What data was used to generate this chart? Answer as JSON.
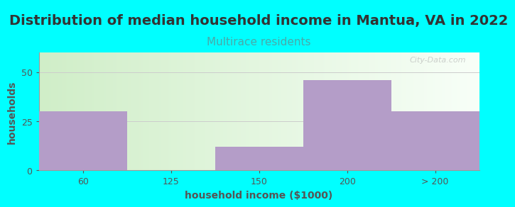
{
  "title": "Distribution of median household income in Mantua, VA in 2022",
  "subtitle": "Multirace residents",
  "xlabel": "household income ($1000)",
  "ylabel": "households",
  "background_color": "#00FFFF",
  "bar_colors": [
    "#b49dc8",
    "#c8e8b8",
    "#b49dc8",
    "#b49dc8",
    "#b49dc8"
  ],
  "categories": [
    "60",
    "125",
    "150",
    "200",
    "> 200"
  ],
  "values": [
    30,
    0,
    12,
    46,
    30
  ],
  "ylim": [
    0,
    60
  ],
  "yticks": [
    0,
    25,
    50
  ],
  "title_fontsize": 14,
  "subtitle_fontsize": 11,
  "axis_label_fontsize": 10,
  "tick_fontsize": 9,
  "title_color": "#333333",
  "subtitle_color": "#48aaaa",
  "axis_color": "#555555",
  "watermark": "City-Data.com",
  "grid_color": "#cccccc",
  "gradient_left": "#d0eec8",
  "gradient_right": "#f8fff8"
}
